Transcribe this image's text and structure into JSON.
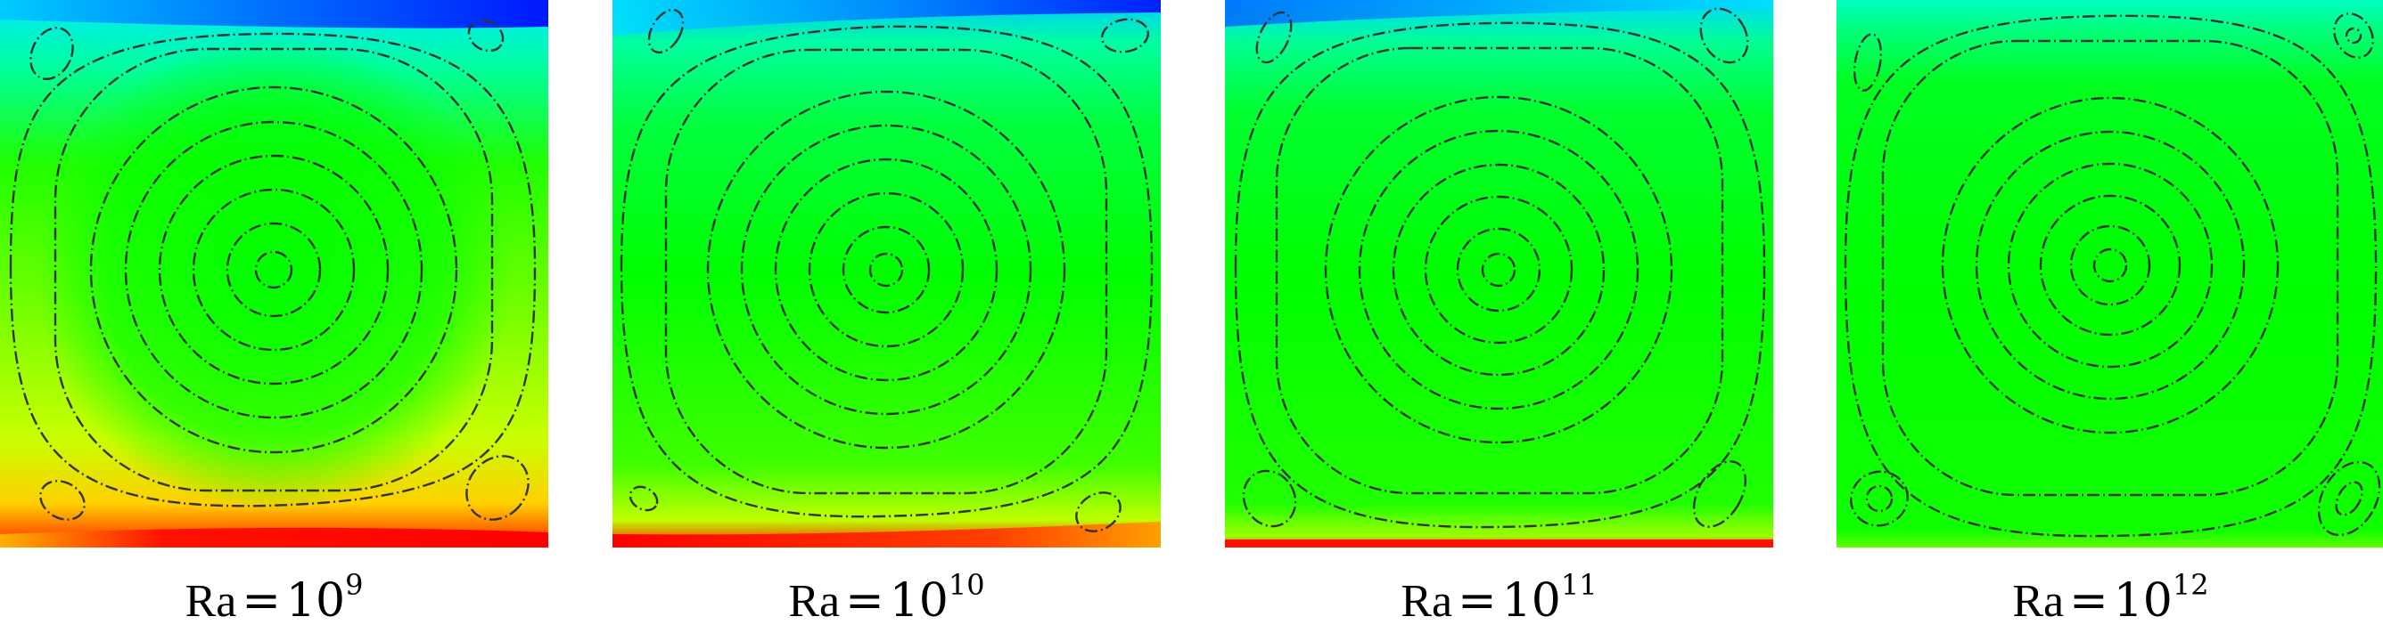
{
  "figure": {
    "panels": [
      {
        "id": "p1",
        "label": {
          "prefix": "Ra",
          "equals": "=",
          "base": "10",
          "exponent": "9"
        }
      },
      {
        "id": "p2",
        "label": {
          "prefix": "Ra",
          "equals": "=",
          "base": "10",
          "exponent": "10"
        }
      },
      {
        "id": "p3",
        "label": {
          "prefix": "Ra",
          "equals": "=",
          "base": "10",
          "exponent": "11"
        }
      },
      {
        "id": "p4",
        "label": {
          "prefix": "Ra",
          "equals": "=",
          "base": "10",
          "exponent": "12"
        }
      }
    ],
    "colors": {
      "bulk": "#00ff00",
      "hot_boundary": "#ff0000",
      "cold_boundary": "#0000ff",
      "streamline": "#333333"
    }
  }
}
